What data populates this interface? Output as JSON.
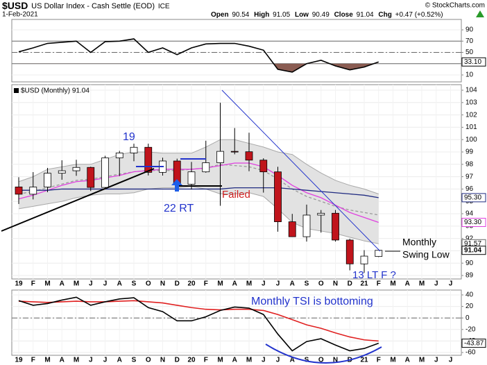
{
  "header": {
    "symbol": "$USD",
    "name": "US Dollar Index - Cash Settle (EOD)",
    "exchange": "ICE",
    "source": "© StockCharts.com",
    "date": "1-Feb-2021",
    "quote": [
      {
        "label": "Open",
        "value": "90.54"
      },
      {
        "label": "High",
        "value": "91.05"
      },
      {
        "label": "Low",
        "value": "90.49"
      },
      {
        "label": "Close",
        "value": "91.04"
      },
      {
        "label": "Chg",
        "value": "+0.47 (+0.52%)"
      }
    ]
  },
  "annotations": {
    "wave19": "19",
    "rt": "22 RT",
    "failed": "Failed",
    "lt": "13 LT F ?",
    "swing1": "Monthly",
    "swing2": "Swing Low",
    "tsi": "Monthly TSI is bottoming"
  },
  "chart_data": [
    {
      "type": "line",
      "ylim": [
        -2.3,
        108.5
      ],
      "yticks": [
        90,
        70,
        50,
        30,
        10
      ],
      "hlines": [
        {
          "value": 70,
          "style": "solid"
        },
        {
          "value": 50,
          "style": "dashdot"
        },
        {
          "value": 30,
          "style": "solid"
        }
      ],
      "fill_below": {
        "value": 30,
        "color": "#8a5c52"
      },
      "series": [
        {
          "color": "#000000",
          "last_label": "33.10",
          "values": [
            51,
            58,
            66,
            68,
            70,
            50,
            69,
            70,
            74,
            50,
            58,
            46,
            58,
            65,
            66,
            66,
            61,
            54,
            20,
            15,
            30,
            36,
            26,
            19,
            24,
            33.1,
            null,
            null,
            null,
            null,
            null
          ]
        }
      ]
    },
    {
      "type": "candlestick",
      "legend": "$USD (Monthly) 91.04",
      "categories": [
        "19",
        "F",
        "M",
        "A",
        "M",
        "J",
        "J",
        "A",
        "S",
        "O",
        "N",
        "D",
        "20",
        "F",
        "M",
        "A",
        "M",
        "J",
        "J",
        "A",
        "S",
        "O",
        "N",
        "D",
        "21",
        "F",
        "M",
        "A",
        "M",
        "J",
        "J"
      ],
      "ylim": [
        88.72,
        104.45
      ],
      "yticks": [
        104,
        103,
        102,
        101,
        100,
        99,
        98,
        97,
        96,
        95,
        94,
        93,
        92,
        91,
        90,
        89
      ],
      "up_color": "#ffffff",
      "down_color": "#c0141c",
      "open": [
        96.17,
        95.58,
        96.16,
        97.28,
        97.48,
        97.75,
        96.13,
        98.52,
        98.92,
        99.38,
        97.35,
        98.27,
        96.39,
        97.39,
        98.13,
        99.05,
        99.02,
        98.34,
        97.39,
        93.35,
        92.14,
        93.89,
        94.04,
        91.87,
        89.94,
        90.54,
        null,
        null,
        null,
        null,
        null
      ],
      "high": [
        96.96,
        97.37,
        97.71,
        98.33,
        98.37,
        97.81,
        98.69,
        99.09,
        99.67,
        99.67,
        98.54,
        98.46,
        98.19,
        99.91,
        102.99,
        100.94,
        100.56,
        98.49,
        97.8,
        93.99,
        94.74,
        94.3,
        94.3,
        91.97,
        91.05,
        91.05,
        null,
        null,
        null,
        null,
        null
      ],
      "low": [
        94.79,
        95.16,
        95.74,
        96.75,
        97.07,
        95.84,
        95.98,
        97.05,
        98.25,
        97.1,
        97.09,
        96.36,
        95.97,
        97.32,
        94.65,
        98.81,
        97.44,
        95.71,
        92.55,
        92.13,
        91.75,
        92.47,
        91.75,
        89.42,
        89.21,
        90.49,
        null,
        null,
        null,
        null,
        null
      ],
      "close": [
        95.58,
        96.16,
        97.28,
        97.48,
        97.75,
        96.13,
        98.52,
        98.92,
        99.38,
        97.35,
        98.27,
        96.39,
        97.39,
        98.13,
        99.05,
        99.02,
        98.34,
        97.39,
        93.35,
        92.14,
        93.89,
        94.04,
        91.87,
        89.94,
        90.57,
        91.04,
        null,
        null,
        null,
        null,
        null
      ],
      "last_label": "91.04",
      "band": {
        "fill": "#e2e2e2",
        "color": "#a8a8a8",
        "upper": [
          96.6,
          97.0,
          97.6,
          97.8,
          98.0,
          98.0,
          98.4,
          98.8,
          99.0,
          99.0,
          98.9,
          98.9,
          98.9,
          99.4,
          100.0,
          100.0,
          99.7,
          99.4,
          99.0,
          98.8,
          98.0,
          97.3,
          96.7,
          96.3,
          96.0,
          95.6,
          null,
          null,
          null,
          null,
          null
        ],
        "lower": [
          94.4,
          94.6,
          94.8,
          95.0,
          95.3,
          95.5,
          95.6,
          95.6,
          95.7,
          96.0,
          96.1,
          96.1,
          96.2,
          96.0,
          95.6,
          95.6,
          95.7,
          95.4,
          94.4,
          93.3,
          92.8,
          92.6,
          92.4,
          92.1,
          91.8,
          91.57,
          null,
          null,
          null,
          null,
          null
        ],
        "last_label": "91.57"
      },
      "lines": [
        {
          "color": "#999999",
          "dash": true,
          "values": [
            95.6,
            95.8,
            96.1,
            96.4,
            96.7,
            96.8,
            97.0,
            97.2,
            97.4,
            97.5,
            97.5,
            97.5,
            97.6,
            97.7,
            98.0,
            97.9,
            97.8,
            97.5,
            96.8,
            96.0,
            95.4,
            95.0,
            94.6,
            94.3,
            94.1,
            93.9,
            null,
            null,
            null,
            null,
            null
          ]
        },
        {
          "color": "#e040e0",
          "dash": false,
          "last_label": "93.30",
          "values": [
            95.2,
            95.5,
            95.9,
            96.3,
            96.6,
            96.7,
            96.9,
            97.1,
            97.4,
            97.5,
            97.6,
            97.6,
            97.6,
            97.7,
            97.9,
            98.1,
            98.1,
            97.8,
            97.1,
            96.3,
            95.7,
            95.3,
            94.7,
            94.1,
            93.7,
            93.3,
            null,
            null,
            null,
            null,
            null
          ]
        },
        {
          "color": "#1f2a80",
          "dash": false,
          "last_label": "95.30",
          "values": [
            95.9,
            95.9,
            95.9,
            96.0,
            96.0,
            96.0,
            96.0,
            96.0,
            96.0,
            96.0,
            96.0,
            96.0,
            96.0,
            96.0,
            96.0,
            96.1,
            96.1,
            96.1,
            96.1,
            96.0,
            95.9,
            95.8,
            95.7,
            95.6,
            95.5,
            95.3,
            null,
            null,
            null,
            null,
            null
          ]
        }
      ]
    },
    {
      "type": "line",
      "categories": [
        "19",
        "F",
        "M",
        "A",
        "M",
        "J",
        "J",
        "A",
        "S",
        "O",
        "N",
        "D",
        "20",
        "F",
        "M",
        "A",
        "M",
        "J",
        "J",
        "A",
        "S",
        "O",
        "N",
        "D",
        "21",
        "F",
        "M",
        "A",
        "M",
        "J",
        "J"
      ],
      "ylim": [
        -64.8,
        48.4
      ],
      "yticks": [
        40,
        20,
        0,
        -20,
        -40,
        -60
      ],
      "hlines": [
        {
          "value": 0,
          "style": "dashdot"
        }
      ],
      "series": [
        {
          "color": "#e02020",
          "values": [
            29,
            28,
            27,
            28,
            29,
            28,
            28,
            29,
            30,
            28,
            26,
            22,
            18,
            15,
            14,
            15,
            15,
            13,
            6,
            -3,
            -12,
            -18,
            -26,
            -33,
            -38,
            -40,
            null,
            null,
            null,
            null,
            null
          ]
        },
        {
          "color": "#000000",
          "last_label": "-43.87",
          "values": [
            30,
            22,
            25,
            31,
            36,
            22,
            28,
            33,
            35,
            18,
            11,
            -5,
            -5,
            2,
            13,
            19,
            17,
            6,
            -28,
            -57,
            -41,
            -36,
            -47,
            -57,
            -53,
            -43.87,
            null,
            null,
            null,
            null,
            null
          ]
        }
      ]
    }
  ]
}
